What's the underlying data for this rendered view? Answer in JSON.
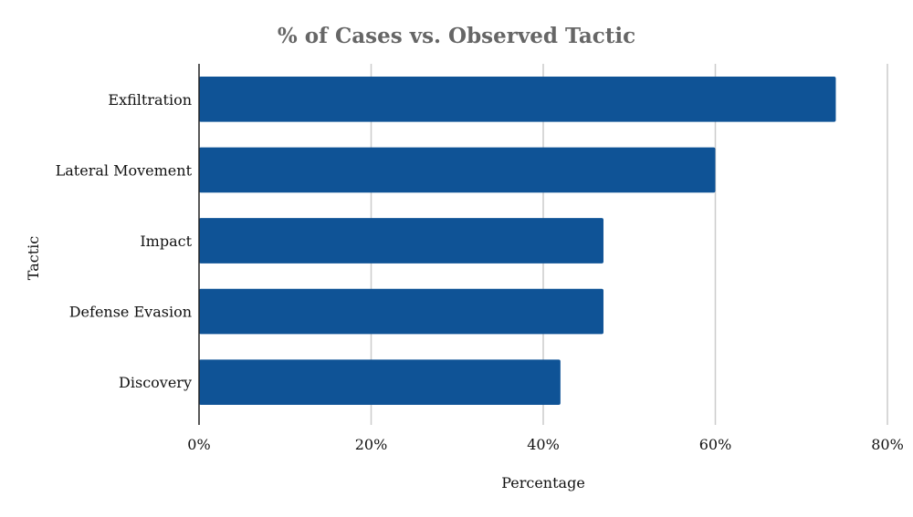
{
  "chart_data": {
    "type": "bar",
    "orientation": "horizontal",
    "title": "% of Cases vs. Observed Tactic",
    "xlabel": "Percentage",
    "ylabel": "Tactic",
    "categories": [
      "Exfiltration",
      "Lateral Movement",
      "Impact",
      "Defense Evasion",
      "Discovery"
    ],
    "values": [
      74,
      60,
      47,
      47,
      42
    ],
    "xlim": [
      0,
      80
    ],
    "xticks": [
      0,
      20,
      40,
      60,
      80
    ],
    "xtick_labels": [
      "0%",
      "20%",
      "40%",
      "60%",
      "80%"
    ],
    "grid": true,
    "legend": "none",
    "bar_color": "#0f5396"
  }
}
